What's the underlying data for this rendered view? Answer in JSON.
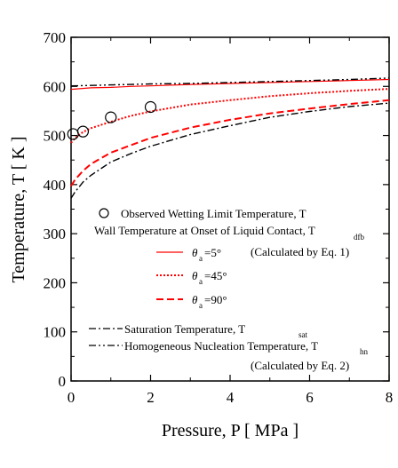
{
  "chart_data": {
    "type": "line",
    "xlabel": "Pressure, P [ MPa ]",
    "ylabel": "Temperature, T [ K ]",
    "xlim": [
      0,
      8
    ],
    "ylim": [
      0,
      700
    ],
    "x_ticks": [
      0,
      2,
      4,
      6,
      8
    ],
    "y_ticks": [
      0,
      100,
      200,
      300,
      400,
      500,
      600,
      700
    ],
    "legend": {
      "position": "lower-right",
      "observed": {
        "text": "Observed Wetting Limit Temperature, T"
      },
      "wall_header": {
        "text": "Wall Temperature at Onset of Liquid Contact, T",
        "subscript": "dfb"
      },
      "wall_note": "(Calculated by Eq. 1)",
      "theta_entries": [
        {
          "theta": "θ",
          "sub": "a",
          "value": "=5°"
        },
        {
          "theta": "θ",
          "sub": "a",
          "value": "=45°"
        },
        {
          "theta": "θ",
          "sub": "a",
          "value": "=90°"
        }
      ],
      "saturation": {
        "text": "Saturation Temperature, T",
        "subscript": "sat"
      },
      "homogeneous": {
        "text": "Homogeneous Nucleation Temperature, T",
        "subscript": "hn"
      },
      "homogeneous_note": "(Calculated by Eq. 2)"
    },
    "observed_points": {
      "x": [
        0.05,
        0.3,
        1.0,
        2.0
      ],
      "y": [
        503,
        508,
        537,
        558
      ]
    },
    "series": [
      {
        "style": "solid-red",
        "color": "#ff0000",
        "x": [
          0,
          0.5,
          1,
          1.5,
          2,
          3,
          4,
          5,
          6,
          7,
          8
        ],
        "y": [
          594,
          597,
          598,
          600,
          601,
          604,
          606,
          608,
          610,
          612,
          614
        ]
      },
      {
        "style": "dotted-red",
        "color": "#ff0000",
        "x": [
          0,
          0.1,
          0.3,
          0.5,
          1,
          1.5,
          2,
          3,
          4,
          5,
          6,
          7,
          8
        ],
        "y": [
          485,
          495,
          507,
          515,
          528,
          540,
          549,
          563,
          572,
          580,
          586,
          591,
          595
        ]
      },
      {
        "style": "dashed-red",
        "color": "#ff0000",
        "x": [
          0,
          0.1,
          0.3,
          0.5,
          1,
          1.5,
          2,
          3,
          4,
          5,
          6,
          7,
          8
        ],
        "y": [
          397,
          410,
          428,
          442,
          465,
          480,
          495,
          516,
          532,
          545,
          555,
          564,
          572
        ]
      },
      {
        "style": "dash-dot-black",
        "color": "#000000",
        "x": [
          0,
          0.1,
          0.3,
          0.5,
          1,
          1.5,
          2,
          3,
          4,
          5,
          6,
          7,
          8
        ],
        "y": [
          372,
          385,
          405,
          419,
          446,
          463,
          478,
          502,
          520,
          537,
          549,
          559,
          566
        ]
      },
      {
        "style": "dash-dot-dot-black",
        "color": "#000000",
        "x": [
          0,
          0.5,
          1,
          1.5,
          2,
          3,
          4,
          5,
          6,
          7,
          8
        ],
        "y": [
          601,
          602,
          603,
          604,
          605,
          606,
          608,
          610,
          612,
          614,
          617
        ]
      }
    ]
  }
}
